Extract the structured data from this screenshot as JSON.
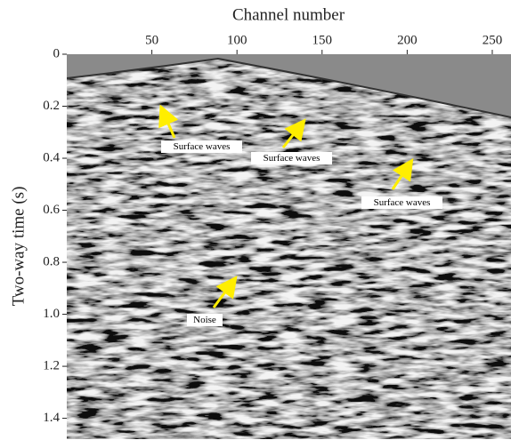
{
  "chart_data": {
    "type": "image",
    "x_label": "Channel number",
    "y_label": "Two-way time (s)",
    "xlim": [
      0,
      261
    ],
    "xticks": [
      50,
      100,
      150,
      200,
      250
    ],
    "ylim": [
      0,
      1.48
    ],
    "yticks": [
      0,
      0.2,
      0.4,
      0.6,
      0.8,
      {
        "value": 1,
        "label": "1.0"
      },
      1.2,
      1.4
    ],
    "annotations": [
      "Surface waves",
      "Surface waves",
      "Surface waves",
      "Noise"
    ]
  }
}
